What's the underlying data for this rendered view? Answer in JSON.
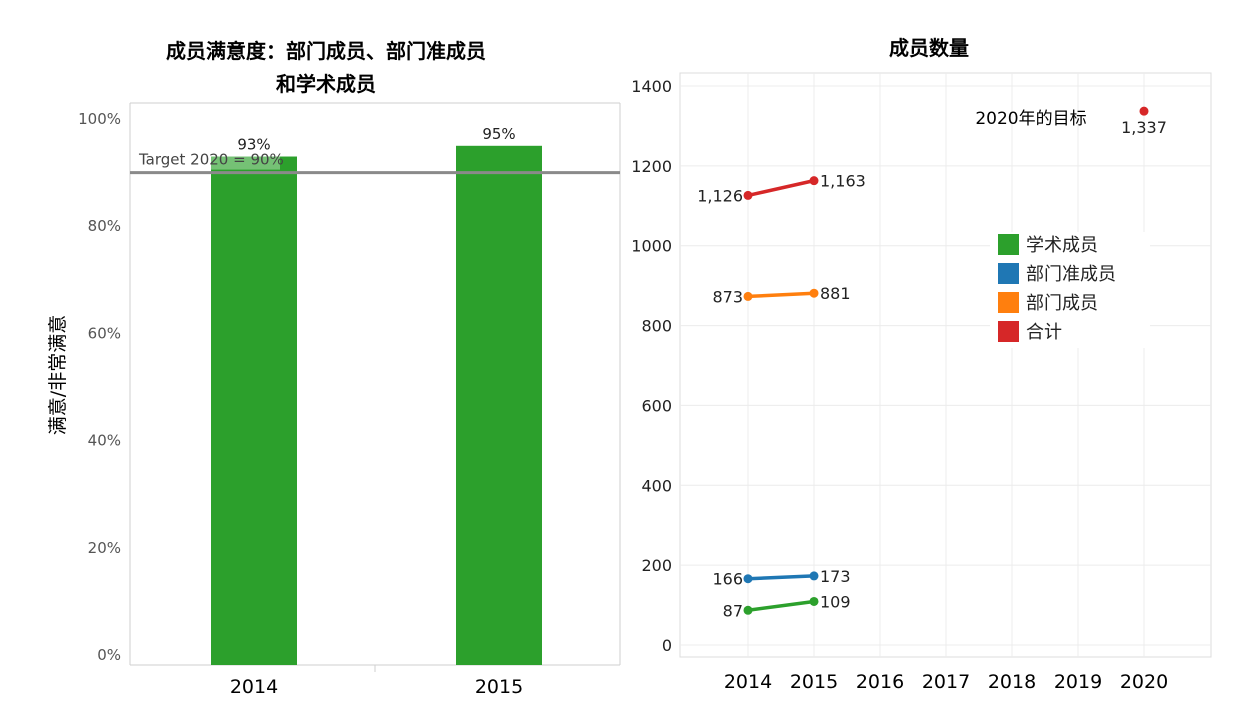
{
  "chart_data": [
    {
      "type": "bar",
      "title_line1": "成员满意度：部门成员、部门准成员",
      "title_line2": "和学术成员",
      "ylabel": "满意/非常满意",
      "categories": [
        "2014",
        "2015"
      ],
      "values": [
        93,
        95
      ],
      "value_labels": [
        "93%",
        "95%"
      ],
      "ylim": [
        0,
        100
      ],
      "yticks": [
        0,
        20,
        40,
        60,
        80,
        100
      ],
      "ytick_labels": [
        "0%",
        "20%",
        "40%",
        "60%",
        "80%",
        "100%"
      ],
      "target": {
        "value": 90,
        "label": "Target 2020 = 90%"
      },
      "bar_color": "#2ca02c",
      "target_line_color": "#8a8a8a"
    },
    {
      "type": "line",
      "title": "成员数量",
      "x": [
        "2014",
        "2015",
        "2016",
        "2017",
        "2018",
        "2019",
        "2020"
      ],
      "ylim": [
        0,
        1400
      ],
      "yticks": [
        0,
        200,
        400,
        600,
        800,
        1000,
        1200,
        1400
      ],
      "ytick_labels": [
        "0",
        "200",
        "400",
        "600",
        "800",
        "1000",
        "1200",
        "1400"
      ],
      "series": [
        {
          "name": "学术成员",
          "color": "#2ca02c",
          "points": [
            {
              "x": "2014",
              "y": 87,
              "label": "87"
            },
            {
              "x": "2015",
              "y": 109,
              "label": "109"
            }
          ]
        },
        {
          "name": "部门准成员",
          "color": "#1f77b4",
          "points": [
            {
              "x": "2014",
              "y": 166,
              "label": "166"
            },
            {
              "x": "2015",
              "y": 173,
              "label": "173"
            }
          ]
        },
        {
          "name": "部门成员",
          "color": "#ff7f0e",
          "points": [
            {
              "x": "2014",
              "y": 873,
              "label": "873"
            },
            {
              "x": "2015",
              "y": 881,
              "label": "881"
            }
          ]
        },
        {
          "name": "合计",
          "color": "#d62728",
          "points": [
            {
              "x": "2014",
              "y": 1126,
              "label": "1,126"
            },
            {
              "x": "2015",
              "y": 1163,
              "label": "1,163"
            }
          ]
        }
      ],
      "goal": {
        "x": "2020",
        "y": 1337,
        "label": "1,337",
        "annotation": "2020年的目标",
        "color": "#d62728"
      },
      "legend_placement": "center-right",
      "grid": true
    }
  ]
}
